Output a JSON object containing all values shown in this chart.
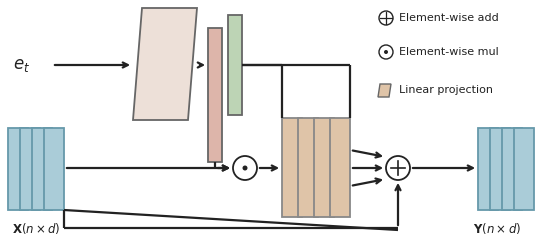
{
  "bg_color": "#ffffff",
  "parallelogram_fill": "#ede0d8",
  "parallelogram_edge": "#666666",
  "pink_bar_fill": "#ddb5aa",
  "pink_bar_edge": "#666666",
  "green_bar_fill": "#bdd4b5",
  "green_bar_edge": "#666666",
  "orange_bars_fill": "#dfc4a8",
  "orange_bars_edge": "#888888",
  "blue_bars_fill": "#aaccd8",
  "blue_bars_edge": "#6699aa",
  "circle_fill": "#ffffff",
  "circle_edge": "#222222",
  "line_color": "#222222",
  "text_color": "#222222",
  "label_et": "$e_t$",
  "label_X": "$\\mathbf{X}(n \\times d)$",
  "label_Y": "$\\mathbf{Y}(n \\times d)$",
  "legend_add": "Element-wise add",
  "legend_mul": "Element-wise mul",
  "legend_proj": "Linear projection"
}
